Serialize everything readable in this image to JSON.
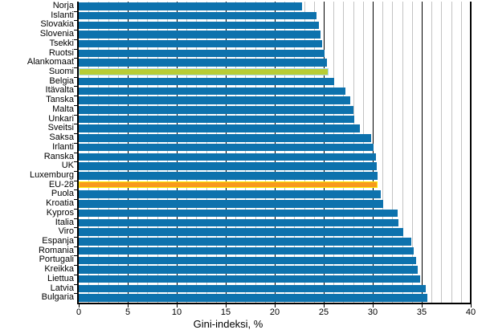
{
  "chart_data": {
    "type": "bar",
    "orientation": "horizontal",
    "title": "",
    "xlabel": "Gini-indeksi, %",
    "ylabel": "",
    "xlim": [
      0,
      40
    ],
    "x_ticks": [
      0,
      5,
      10,
      15,
      20,
      25,
      30,
      35,
      40
    ],
    "grid": {
      "minor_every": 1,
      "major_every": 5,
      "gridlines_behind_bars": true
    },
    "legend": "none",
    "categories": [
      "Norja",
      "Islanti",
      "Slovakia",
      "Slovenia",
      "Tsekki",
      "Ruotsi",
      "Alankomaat",
      "Suomi",
      "Belgia",
      "Itävalta",
      "Tanska",
      "Malta",
      "Unkari",
      "Sveitsi",
      "Saksa",
      "Irlanti",
      "Ranska",
      "UK",
      "Luxemburg",
      "EU-28",
      "Puola",
      "Kroatia",
      "Kypros",
      "Italia",
      "Viro",
      "Espanja",
      "Romania",
      "Portugali",
      "Kreikka",
      "Liettua",
      "Latvia",
      "Bulgaria"
    ],
    "values": [
      22.8,
      24.3,
      24.5,
      24.7,
      24.8,
      25.1,
      25.3,
      25.6,
      26.1,
      27.2,
      27.7,
      28.0,
      28.1,
      28.7,
      29.8,
      30.1,
      30.3,
      30.4,
      30.5,
      30.6,
      30.8,
      31.1,
      32.5,
      32.6,
      33.1,
      33.9,
      34.2,
      34.4,
      34.6,
      34.8,
      35.4,
      35.6
    ],
    "bar_styles": [
      "blue",
      "blue",
      "blue",
      "blue",
      "blue",
      "blue",
      "blue",
      "green",
      "blue",
      "blue",
      "blue",
      "blue",
      "blue",
      "blue",
      "blue",
      "blue",
      "blue",
      "blue",
      "blue",
      "orange",
      "blue",
      "blue",
      "blue",
      "blue",
      "blue",
      "blue",
      "blue",
      "blue",
      "blue",
      "blue",
      "blue",
      "blue"
    ],
    "highlighted_bars": {
      "Suomi": "green with light-blue border",
      "EU-28": "orange with yellow border"
    },
    "colors": {
      "bar_default": "#0d72ad",
      "bar_finland_fill": "#b7cc35",
      "bar_finland_border": "#a6d9ee",
      "bar_eu_fill": "#f89a1c",
      "bar_eu_border": "#ffec00",
      "minor_gridline": "#c3c3c3",
      "major_gridline": "#000000",
      "axis": "#000000",
      "background": "#ffffff"
    }
  }
}
